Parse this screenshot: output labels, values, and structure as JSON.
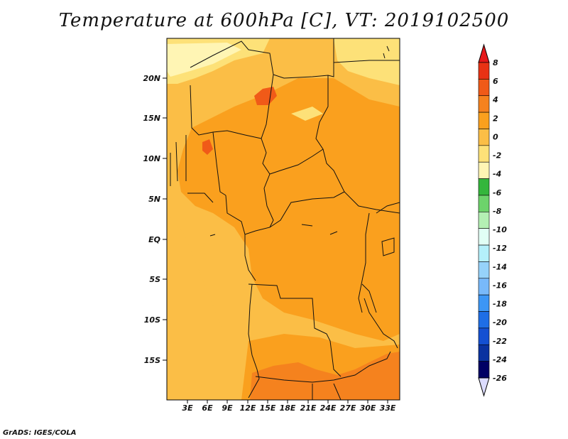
{
  "title": "Temperature at 600hPa [C], VT: 2019102500",
  "credit": "GrADS: IGES/COLA",
  "lat_labels": [
    "20N",
    "15N",
    "10N",
    "5N",
    "EQ",
    "5S",
    "10S",
    "15S"
  ],
  "lon_labels": [
    "3E",
    "6E",
    "9E",
    "12E",
    "15E",
    "18E",
    "21E",
    "24E",
    "27E",
    "30E",
    "33E"
  ],
  "colorbar": {
    "labels": [
      "8",
      "6",
      "4",
      "2",
      "0",
      "-2",
      "-4",
      "-6",
      "-8",
      "-10",
      "-12",
      "-14",
      "-16",
      "-18",
      "-20",
      "-22",
      "-24",
      "-26"
    ],
    "colors": [
      "#e83214",
      "#f05a18",
      "#f5821e",
      "#faa01e",
      "#fbbe46",
      "#fde178",
      "#fff5b4",
      "#34b63c",
      "#6dd36b",
      "#b4f0b4",
      "#e1fff5",
      "#b4f0fa",
      "#96d2fa",
      "#78b9fa",
      "#3c96f5",
      "#1e6ee6",
      "#1450d2",
      "#0a32a0",
      "#000064"
    ],
    "over_color": "#e6181a",
    "under_color": "#dcdcff"
  },
  "map_colors": {
    "base": "#fbbe46",
    "warm": "#faa01e",
    "warmer": "#f5821e",
    "hot": "#f05a18",
    "cool": "#fde178",
    "cooler": "#fff5b4"
  }
}
